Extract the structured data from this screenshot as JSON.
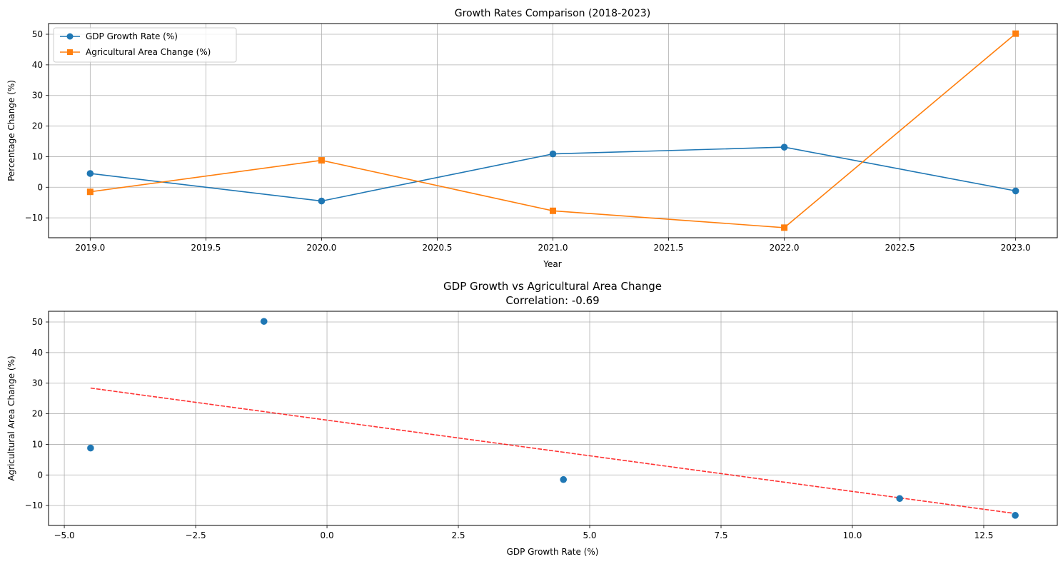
{
  "chart_data": [
    {
      "type": "line",
      "title": "Growth Rates Comparison (2018-2023)",
      "xlabel": "Year",
      "ylabel": "Percentage Change (%)",
      "xlim": [
        2018.82,
        2023.18
      ],
      "ylim": [
        -16.5,
        53.5
      ],
      "xticks": [
        2019.0,
        2019.5,
        2020.0,
        2020.5,
        2021.0,
        2021.5,
        2022.0,
        2022.5,
        2023.0
      ],
      "xtick_labels": [
        "2019.0",
        "2019.5",
        "2020.0",
        "2020.5",
        "2021.0",
        "2021.5",
        "2022.0",
        "2022.5",
        "2023.0"
      ],
      "yticks": [
        -10,
        0,
        10,
        20,
        30,
        40,
        50
      ],
      "ytick_labels": [
        "−10",
        "0",
        "10",
        "20",
        "30",
        "40",
        "50"
      ],
      "grid": true,
      "legend": "top-left",
      "x": [
        2019,
        2020,
        2021,
        2022,
        2023
      ],
      "series": [
        {
          "name": "GDP Growth Rate (%)",
          "values": [
            4.5,
            -4.5,
            10.9,
            13.1,
            -1.2
          ],
          "color": "#1f77b4",
          "marker": "circle"
        },
        {
          "name": "Agricultural Area Change (%)",
          "values": [
            -1.5,
            8.8,
            -7.7,
            -13.2,
            50.2
          ],
          "color": "#ff7f0e",
          "marker": "square"
        }
      ]
    },
    {
      "type": "scatter",
      "title": "GDP Growth vs Agricultural Area Change",
      "subtitle": "Correlation: -0.69",
      "xlabel": "GDP Growth Rate (%)",
      "ylabel": "Agricultural Area Change (%)",
      "xlim": [
        -5.3,
        13.9
      ],
      "ylim": [
        -16.5,
        53.5
      ],
      "xticks": [
        -5.0,
        -2.5,
        0.0,
        2.5,
        5.0,
        7.5,
        10.0,
        12.5
      ],
      "xtick_labels": [
        "−5.0",
        "−2.5",
        "0.0",
        "2.5",
        "5.0",
        "7.5",
        "10.0",
        "12.5"
      ],
      "yticks": [
        -10,
        0,
        10,
        20,
        30,
        40,
        50
      ],
      "ytick_labels": [
        "−10",
        "0",
        "10",
        "20",
        "30",
        "40",
        "50"
      ],
      "grid": true,
      "points": {
        "x": [
          4.5,
          -4.5,
          10.9,
          13.1,
          -1.2
        ],
        "y": [
          -1.5,
          8.8,
          -7.7,
          -13.2,
          50.2
        ],
        "color": "#1f77b4"
      },
      "trendline": {
        "x": [
          -4.5,
          13.1
        ],
        "y": [
          28.4,
          -12.6
        ],
        "color": "#ff0000",
        "style": "dashed"
      }
    }
  ]
}
